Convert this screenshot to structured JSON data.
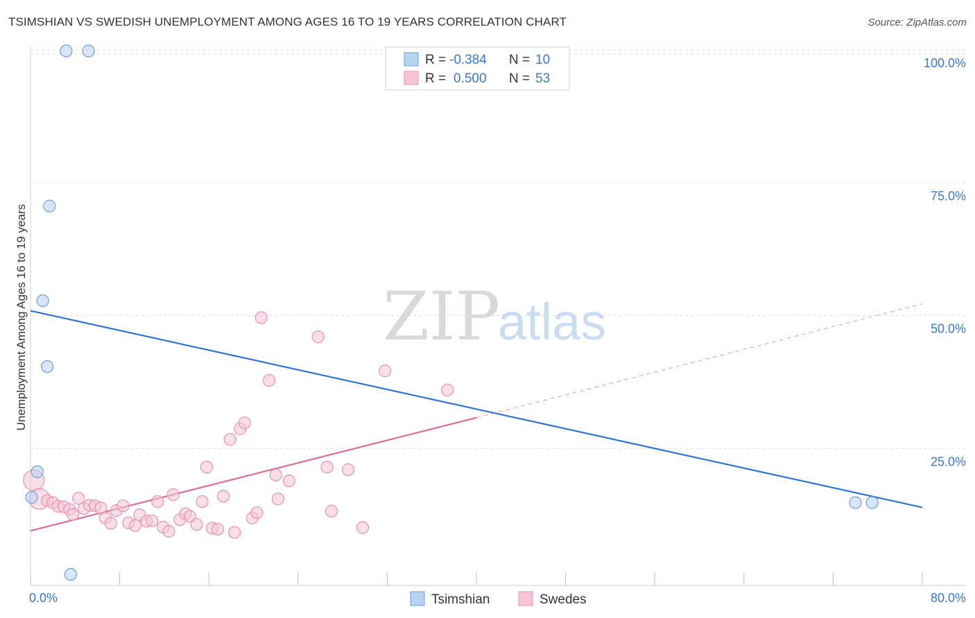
{
  "chart_data": {
    "type": "scatter",
    "title": "TSIMSHIAN VS SWEDISH UNEMPLOYMENT AMONG AGES 16 TO 19 YEARS CORRELATION CHART",
    "source": "Source: ZipAtlas.com",
    "xlabel": "",
    "ylabel": "Unemployment Among Ages 16 to 19 years",
    "xlim": [
      0,
      80
    ],
    "ylim": [
      0,
      100
    ],
    "x_tick_labels": {
      "min": "0.0%",
      "max": "80.0%"
    },
    "y_ticks": [
      {
        "value": 25,
        "label": "25.0%"
      },
      {
        "value": 50,
        "label": "50.0%"
      },
      {
        "value": 75,
        "label": "75.0%"
      },
      {
        "value": 100,
        "label": "100.0%"
      }
    ],
    "grid": true,
    "watermark": {
      "part1": "ZIP",
      "part2": "atlas"
    },
    "legend": {
      "position": "top-center",
      "rows": [
        {
          "r_label": "R = ",
          "r_value": "-0.384",
          "n_label": "N = ",
          "n_value": "10"
        },
        {
          "r_label": "R = ",
          "r_value": "0.500",
          "n_label": "N = ",
          "n_value": "53"
        }
      ]
    },
    "series": [
      {
        "name": "Tsimshian",
        "color": "#6a9fdc",
        "fill": "#b8d2f2",
        "trend_color": "#2f74d0",
        "trend": {
          "x0": 0,
          "y0": 50.9,
          "x1": 80,
          "y1": 13.9
        },
        "points": [
          {
            "x": 3.2,
            "y": 99.8
          },
          {
            "x": 5.2,
            "y": 99.8
          },
          {
            "x": 1.7,
            "y": 70.6
          },
          {
            "x": 1.1,
            "y": 52.8
          },
          {
            "x": 1.5,
            "y": 40.4
          },
          {
            "x": 0.6,
            "y": 20.6
          },
          {
            "x": 0.1,
            "y": 15.8
          },
          {
            "x": 3.6,
            "y": 1.3
          },
          {
            "x": 74.0,
            "y": 14.8
          },
          {
            "x": 75.5,
            "y": 14.8
          }
        ]
      },
      {
        "name": "Swedes",
        "color": "#ea8fb0",
        "fill": "#f6c4d6",
        "trend_color": "#e06b96",
        "trend": {
          "x0": 0,
          "y0": 9.5,
          "x1": 40,
          "y1": 30.8
        },
        "trend_dashed": {
          "x0": 40,
          "y0": 30.8,
          "x1": 80,
          "y1": 52.2
        },
        "points": [
          {
            "x": 0.3,
            "y": 19.0,
            "big": true
          },
          {
            "x": 0.8,
            "y": 15.5,
            "big": true
          },
          {
            "x": 1.5,
            "y": 15.2
          },
          {
            "x": 2.0,
            "y": 14.8
          },
          {
            "x": 2.5,
            "y": 14.1
          },
          {
            "x": 3.0,
            "y": 14.0
          },
          {
            "x": 3.5,
            "y": 13.5
          },
          {
            "x": 3.8,
            "y": 12.6
          },
          {
            "x": 4.3,
            "y": 15.6
          },
          {
            "x": 4.8,
            "y": 13.7
          },
          {
            "x": 5.3,
            "y": 14.3
          },
          {
            "x": 5.8,
            "y": 14.2
          },
          {
            "x": 6.3,
            "y": 13.8
          },
          {
            "x": 6.7,
            "y": 11.9
          },
          {
            "x": 7.2,
            "y": 10.9
          },
          {
            "x": 7.7,
            "y": 13.3
          },
          {
            "x": 8.3,
            "y": 14.2
          },
          {
            "x": 8.8,
            "y": 11.0
          },
          {
            "x": 9.4,
            "y": 10.5
          },
          {
            "x": 9.8,
            "y": 12.5
          },
          {
            "x": 10.4,
            "y": 11.3
          },
          {
            "x": 10.9,
            "y": 11.4
          },
          {
            "x": 11.4,
            "y": 15.0
          },
          {
            "x": 11.9,
            "y": 10.2
          },
          {
            "x": 12.4,
            "y": 9.4
          },
          {
            "x": 12.8,
            "y": 16.3
          },
          {
            "x": 13.4,
            "y": 11.6
          },
          {
            "x": 13.9,
            "y": 12.7
          },
          {
            "x": 14.3,
            "y": 12.2
          },
          {
            "x": 14.9,
            "y": 10.7
          },
          {
            "x": 15.4,
            "y": 15.0
          },
          {
            "x": 15.8,
            "y": 21.5
          },
          {
            "x": 16.3,
            "y": 10.0
          },
          {
            "x": 16.8,
            "y": 9.8
          },
          {
            "x": 17.3,
            "y": 16.0
          },
          {
            "x": 17.9,
            "y": 26.7
          },
          {
            "x": 18.3,
            "y": 9.2
          },
          {
            "x": 18.8,
            "y": 28.7
          },
          {
            "x": 19.2,
            "y": 29.8
          },
          {
            "x": 19.9,
            "y": 11.9
          },
          {
            "x": 20.3,
            "y": 12.9
          },
          {
            "x": 20.7,
            "y": 49.6
          },
          {
            "x": 21.4,
            "y": 37.8
          },
          {
            "x": 22.0,
            "y": 20.0
          },
          {
            "x": 22.2,
            "y": 15.5
          },
          {
            "x": 23.2,
            "y": 18.9
          },
          {
            "x": 25.8,
            "y": 46.0
          },
          {
            "x": 26.6,
            "y": 21.5
          },
          {
            "x": 27.0,
            "y": 13.2
          },
          {
            "x": 28.5,
            "y": 21.0
          },
          {
            "x": 29.8,
            "y": 10.1
          },
          {
            "x": 31.8,
            "y": 39.6
          },
          {
            "x": 37.4,
            "y": 36.0
          }
        ]
      }
    ]
  }
}
